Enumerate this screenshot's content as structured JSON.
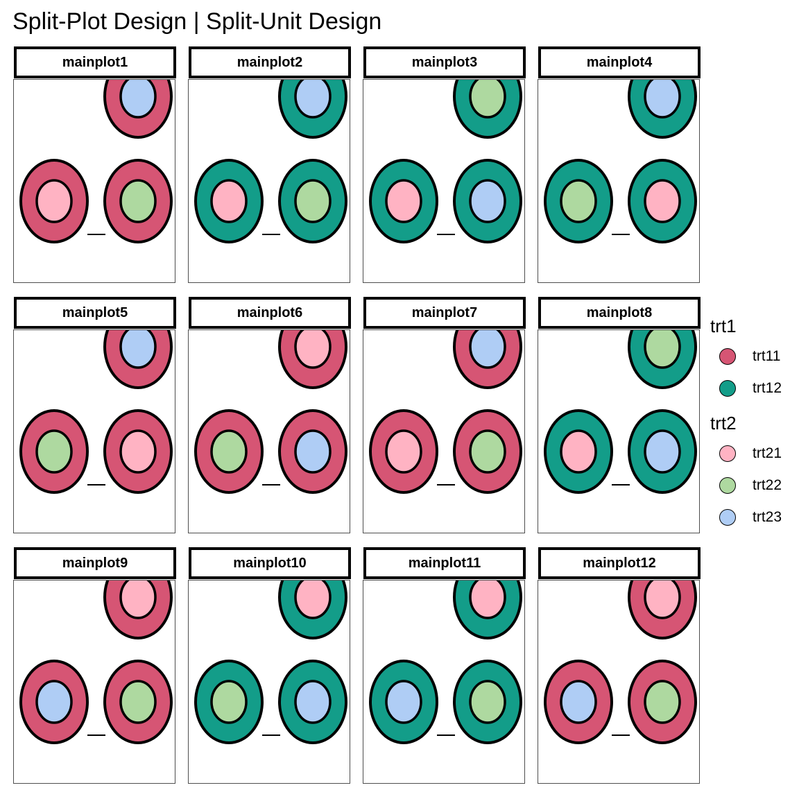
{
  "title": "Split-Plot Design | Split-Unit Design",
  "colors": {
    "trt11": "#D65574",
    "trt12": "#139D89",
    "trt21": "#FFB3C3",
    "trt22": "#AED9A0",
    "trt23": "#AFCDF5",
    "outline": "#000000"
  },
  "legend": {
    "groups": [
      {
        "title": "trt1",
        "items": [
          {
            "label": "trt11",
            "color_key": "trt11"
          },
          {
            "label": "trt12",
            "color_key": "trt12"
          }
        ]
      },
      {
        "title": "trt2",
        "items": [
          {
            "label": "trt21",
            "color_key": "trt21"
          },
          {
            "label": "trt22",
            "color_key": "trt22"
          },
          {
            "label": "trt23",
            "color_key": "trt23"
          }
        ]
      }
    ]
  },
  "panels": [
    {
      "label": "mainplot1",
      "trt1": "trt11",
      "subplots": {
        "top": "trt23",
        "bottom_left": "trt21",
        "bottom_right": "trt22"
      }
    },
    {
      "label": "mainplot2",
      "trt1": "trt12",
      "subplots": {
        "top": "trt23",
        "bottom_left": "trt21",
        "bottom_right": "trt22"
      }
    },
    {
      "label": "mainplot3",
      "trt1": "trt12",
      "subplots": {
        "top": "trt22",
        "bottom_left": "trt21",
        "bottom_right": "trt23"
      }
    },
    {
      "label": "mainplot4",
      "trt1": "trt12",
      "subplots": {
        "top": "trt23",
        "bottom_left": "trt22",
        "bottom_right": "trt21"
      }
    },
    {
      "label": "mainplot5",
      "trt1": "trt11",
      "subplots": {
        "top": "trt23",
        "bottom_left": "trt22",
        "bottom_right": "trt21"
      }
    },
    {
      "label": "mainplot6",
      "trt1": "trt11",
      "subplots": {
        "top": "trt21",
        "bottom_left": "trt22",
        "bottom_right": "trt23"
      }
    },
    {
      "label": "mainplot7",
      "trt1": "trt11",
      "subplots": {
        "top": "trt23",
        "bottom_left": "trt21",
        "bottom_right": "trt22"
      }
    },
    {
      "label": "mainplot8",
      "trt1": "trt12",
      "subplots": {
        "top": "trt22",
        "bottom_left": "trt21",
        "bottom_right": "trt23"
      }
    },
    {
      "label": "mainplot9",
      "trt1": "trt11",
      "subplots": {
        "top": "trt21",
        "bottom_left": "trt23",
        "bottom_right": "trt22"
      }
    },
    {
      "label": "mainplot10",
      "trt1": "trt12",
      "subplots": {
        "top": "trt21",
        "bottom_left": "trt22",
        "bottom_right": "trt23"
      }
    },
    {
      "label": "mainplot11",
      "trt1": "trt12",
      "subplots": {
        "top": "trt21",
        "bottom_left": "trt23",
        "bottom_right": "trt22"
      }
    },
    {
      "label": "mainplot12",
      "trt1": "trt11",
      "subplots": {
        "top": "trt21",
        "bottom_left": "trt23",
        "bottom_right": "trt22"
      }
    }
  ]
}
